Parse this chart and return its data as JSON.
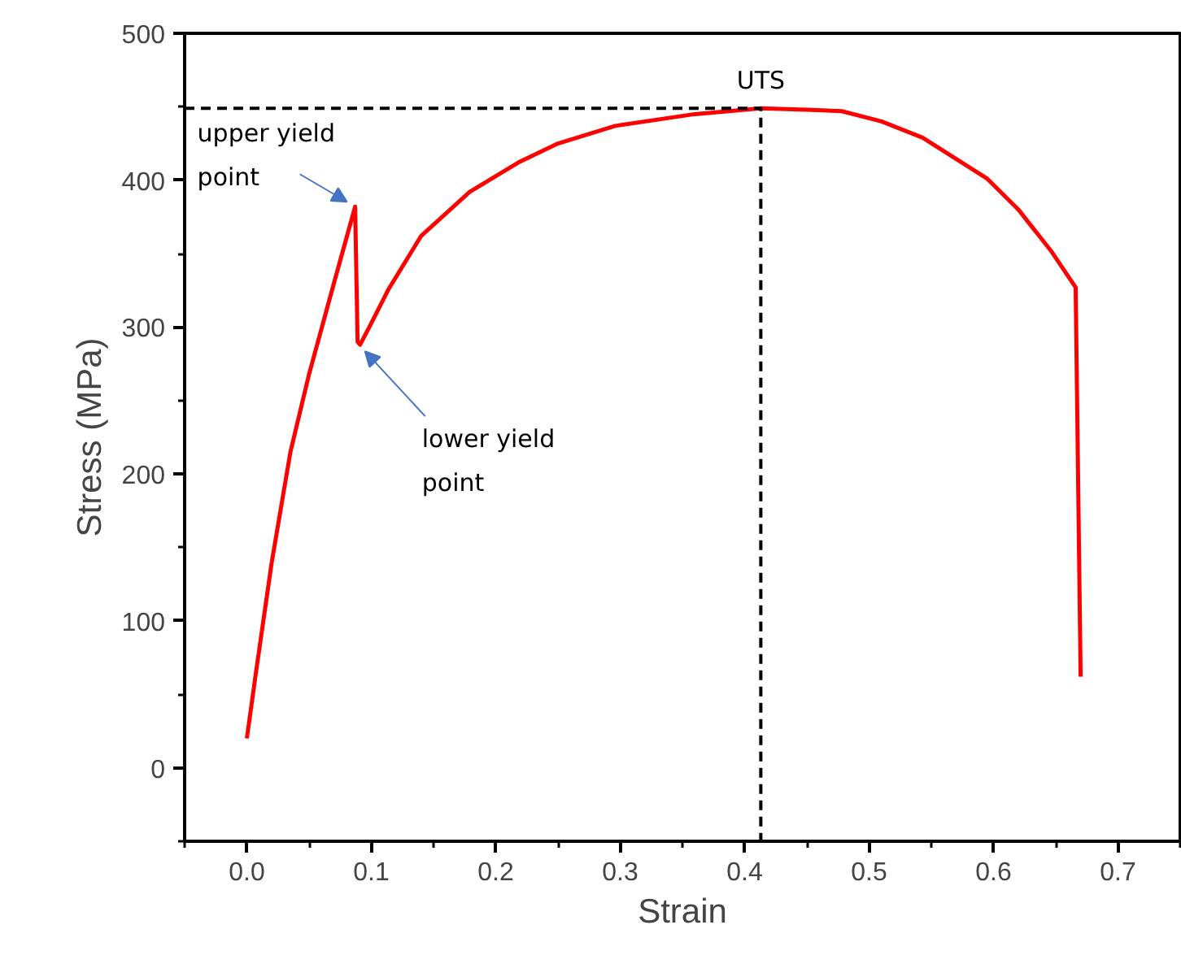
{
  "chart_data": {
    "type": "line",
    "xlabel": "Strain",
    "ylabel": "Stress (MPa)",
    "xlim": [
      -0.05,
      0.75
    ],
    "ylim": [
      -50,
      500
    ],
    "xticks": [
      {
        "value": 0.0,
        "label": "0.0"
      },
      {
        "value": 0.1,
        "label": "0.1"
      },
      {
        "value": 0.2,
        "label": "0.2"
      },
      {
        "value": 0.3,
        "label": "0.3"
      },
      {
        "value": 0.4,
        "label": "0.4"
      },
      {
        "value": 0.5,
        "label": "0.5"
      },
      {
        "value": 0.6,
        "label": "0.6"
      },
      {
        "value": 0.7,
        "label": "0.7"
      }
    ],
    "yticks": [
      0,
      100,
      200,
      300,
      400,
      500
    ],
    "marker": "none",
    "series": [
      {
        "color": "#ff0000",
        "line_style": "solid",
        "x": [
          0,
          0.007,
          0.02,
          0.035,
          0.05,
          0.07,
          0.087,
          0.089,
          0.091,
          0.099,
          0.114,
          0.14,
          0.179,
          0.218,
          0.25,
          0.296,
          0.36,
          0.413,
          0.45,
          0.478,
          0.51,
          0.543,
          0.595,
          0.62,
          0.647,
          0.666,
          0.67
        ],
        "values": [
          20,
          63,
          140,
          215,
          268,
          330,
          382,
          290,
          288,
          301,
          326,
          362,
          392,
          412,
          425,
          437,
          445,
          449,
          448,
          447,
          440,
          429,
          401,
          380,
          351,
          327,
          62
        ]
      },
      {
        "color": "#000000",
        "line_style": "dashed",
        "x": [
          -0.05,
          0.413,
          0.413
        ],
        "values": [
          449,
          449,
          -50
        ]
      }
    ],
    "annotations": [
      {
        "text": "UTS",
        "x": 0.413,
        "y": 449
      },
      {
        "text": "upper yield\npoint",
        "x": 0.087,
        "y": 382
      },
      {
        "text": "lower yield\npoint",
        "x": 0.091,
        "y": 288
      }
    ]
  }
}
